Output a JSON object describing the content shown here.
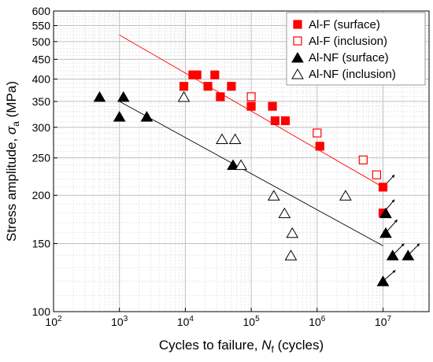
{
  "chart_data": {
    "type": "scatter",
    "xscale": "log",
    "yscale": "log",
    "xlim": [
      100,
      50000000
    ],
    "ylim": [
      100,
      600
    ],
    "grid": true,
    "legend_position": "top-right",
    "xlabel": {
      "main": "Cycles to failure, ",
      "var": "N",
      "sub": "f",
      "unit": " (cycles)"
    },
    "ylabel": {
      "main": "Stress amplitude, ",
      "var": "σ",
      "sub": "a",
      "unit": " (MPa)"
    },
    "x_ticks": [
      {
        "value": 100,
        "base": "10",
        "exp": "2"
      },
      {
        "value": 1000,
        "base": "10",
        "exp": "3"
      },
      {
        "value": 10000,
        "base": "10",
        "exp": "4"
      },
      {
        "value": 100000,
        "base": "10",
        "exp": "5"
      },
      {
        "value": 1000000,
        "base": "10",
        "exp": "6"
      },
      {
        "value": 10000000,
        "base": "10",
        "exp": "7"
      }
    ],
    "y_ticks": [
      100,
      150,
      200,
      250,
      300,
      350,
      400,
      450,
      500,
      550,
      600
    ],
    "y_tick_labels": [
      "100",
      "150",
      "200",
      "250",
      "300",
      "350",
      "400",
      "450",
      "500",
      "550",
      "600"
    ],
    "series": [
      {
        "name": "Al-F (surface)",
        "marker": "square",
        "filled": true,
        "color": "#ff0000",
        "points": [
          [
            9500,
            383
          ],
          [
            13000,
            410
          ],
          [
            15000,
            410
          ],
          [
            22000,
            383
          ],
          [
            28000,
            410
          ],
          [
            34000,
            360
          ],
          [
            50000,
            383
          ],
          [
            100000,
            340
          ],
          [
            210000,
            340
          ],
          [
            230000,
            312
          ],
          [
            330000,
            312
          ],
          [
            1100000,
            268
          ],
          [
            10000000,
            210
          ],
          [
            10000000,
            180
          ]
        ]
      },
      {
        "name": "Al-F (inclusion)",
        "marker": "square",
        "filled": false,
        "color": "#ff0000",
        "points": [
          [
            100000,
            360
          ],
          [
            1000000,
            290
          ],
          [
            5000000,
            247
          ],
          [
            8000000,
            226
          ]
        ]
      },
      {
        "name": "Al-NF (surface)",
        "marker": "triangle",
        "filled": true,
        "color": "#000000",
        "points": [
          [
            500,
            360
          ],
          [
            1000,
            320
          ],
          [
            1150,
            360
          ],
          [
            2600,
            320
          ],
          [
            53000,
            240
          ],
          [
            11000000,
            180
          ],
          [
            11000000,
            160
          ],
          [
            10000000,
            120
          ],
          [
            14000000,
            140
          ],
          [
            24000000,
            140
          ]
        ]
      },
      {
        "name": "Al-NF (inclusion)",
        "marker": "triangle",
        "filled": false,
        "color": "#000000",
        "points": [
          [
            9500,
            360
          ],
          [
            36000,
            280
          ],
          [
            57000,
            280
          ],
          [
            70000,
            240
          ],
          [
            220000,
            200
          ],
          [
            320000,
            180
          ],
          [
            420000,
            160
          ],
          [
            400000,
            140
          ],
          [
            2700000,
            200
          ]
        ]
      }
    ],
    "fit_lines": [
      {
        "color": "#ff0000",
        "from": [
          1000,
          520
        ],
        "to": [
          10000000,
          210
        ]
      },
      {
        "color": "#000000",
        "from": [
          1000,
          350
        ],
        "to": [
          10000000,
          148
        ]
      }
    ],
    "runouts": [
      {
        "from": [
          10000000,
          210
        ],
        "to": [
          15000000,
          226
        ]
      },
      {
        "from": [
          10000000,
          180
        ],
        "to": [
          15000000,
          195
        ]
      },
      {
        "from": [
          11000000,
          160
        ],
        "to": [
          16500000,
          173
        ]
      },
      {
        "from": [
          10000000,
          120
        ],
        "to": [
          15500000,
          128
        ]
      },
      {
        "from": [
          14000000,
          140
        ],
        "to": [
          21000000,
          150
        ]
      },
      {
        "from": [
          24000000,
          140
        ],
        "to": [
          36000000,
          150
        ]
      }
    ],
    "colors": {
      "red": "#ff0000",
      "black": "#000000",
      "grid_major": "#c0c0c0",
      "grid_minor": "#dddddd"
    }
  }
}
